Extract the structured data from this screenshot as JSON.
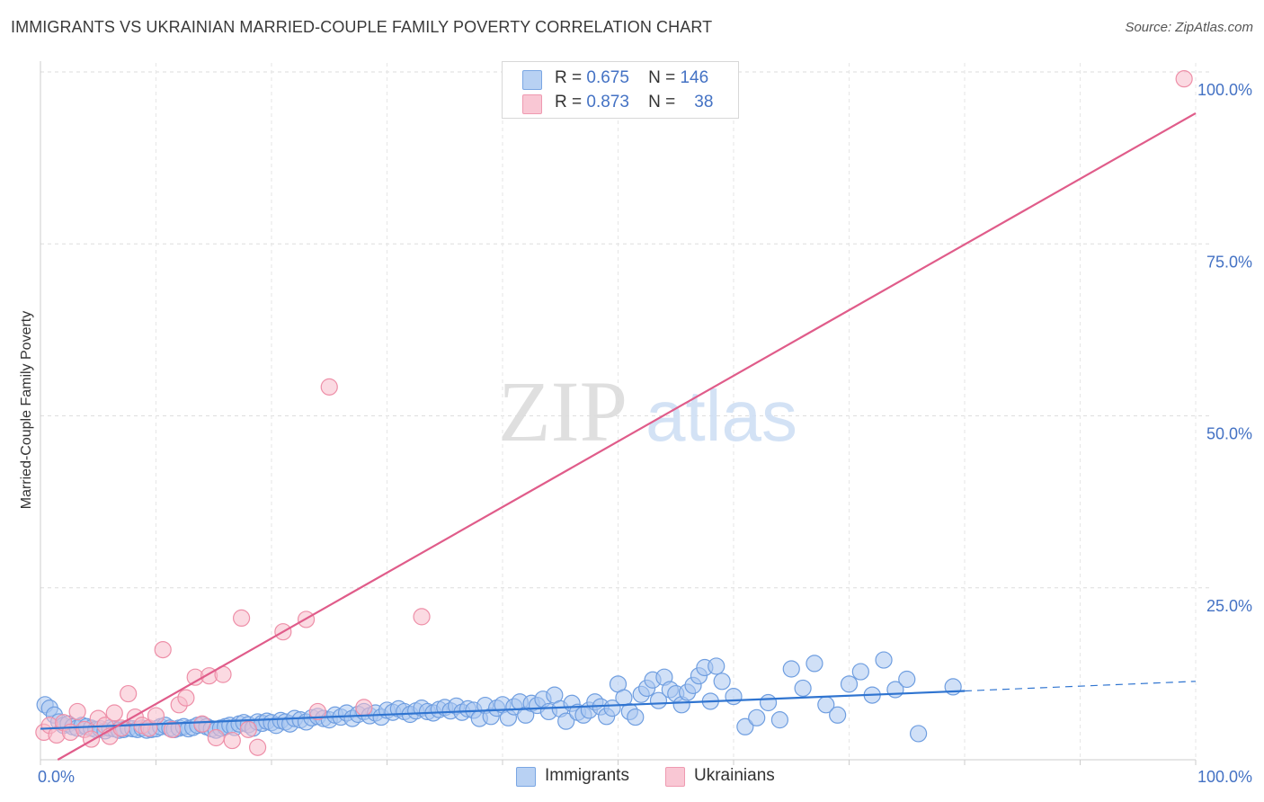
{
  "chart_data": {
    "type": "scatter",
    "title": "IMMIGRANTS VS UKRAINIAN MARRIED-COUPLE FAMILY POVERTY CORRELATION CHART",
    "source": "Source: ZipAtlas.com",
    "xlabel": "",
    "ylabel": "Married-Couple Family Poverty",
    "xlim": [
      0,
      100
    ],
    "ylim": [
      0,
      100
    ],
    "x_tick_labels": [
      "0.0%",
      "100.0%"
    ],
    "y_ticks": [
      {
        "value": 25,
        "label": "25.0%"
      },
      {
        "value": 50,
        "label": "50.0%"
      },
      {
        "value": 75,
        "label": "75.0%"
      },
      {
        "value": 100,
        "label": "100.0%"
      }
    ],
    "watermark": {
      "part1": "ZIP",
      "part2": "atlas"
    },
    "legend": {
      "rows": [
        {
          "r_label": "R =",
          "r_value": "0.675",
          "n_label": "N =",
          "n_value": "146"
        },
        {
          "r_label": "R =",
          "r_value": "0.873",
          "n_label": "N =",
          "n_value": "38"
        }
      ]
    },
    "series": [
      {
        "name": "Immigrants",
        "fill": "#a9c6f0",
        "stroke": "#6f9ee0",
        "line_color": "#2f74d0",
        "trend": {
          "x0": 0,
          "y0": 4.5,
          "x1": 80,
          "y1": 10.0,
          "dash_to_x": 100,
          "dash_to_y": 11.4
        },
        "points": [
          [
            0.4,
            8.0
          ],
          [
            0.8,
            7.5
          ],
          [
            1.2,
            6.5
          ],
          [
            1.6,
            5.5
          ],
          [
            2.0,
            5.0
          ],
          [
            2.4,
            5.2
          ],
          [
            2.8,
            4.8
          ],
          [
            3.2,
            4.6
          ],
          [
            3.6,
            5.0
          ],
          [
            4.0,
            4.8
          ],
          [
            4.4,
            4.6
          ],
          [
            4.8,
            4.4
          ],
          [
            5.2,
            4.5
          ],
          [
            5.6,
            4.2
          ],
          [
            6.0,
            4.6
          ],
          [
            6.4,
            4.5
          ],
          [
            6.8,
            4.3
          ],
          [
            7.2,
            4.4
          ],
          [
            7.6,
            4.6
          ],
          [
            8.0,
            4.5
          ],
          [
            8.4,
            4.4
          ],
          [
            8.8,
            4.6
          ],
          [
            9.2,
            4.3
          ],
          [
            9.6,
            4.4
          ],
          [
            10.0,
            4.5
          ],
          [
            10.4,
            4.8
          ],
          [
            10.8,
            5.0
          ],
          [
            11.2,
            4.6
          ],
          [
            11.6,
            4.4
          ],
          [
            12.0,
            4.6
          ],
          [
            12.4,
            4.8
          ],
          [
            12.8,
            4.5
          ],
          [
            13.2,
            4.7
          ],
          [
            13.6,
            5.0
          ],
          [
            14.0,
            5.1
          ],
          [
            14.4,
            4.8
          ],
          [
            14.8,
            4.5
          ],
          [
            15.2,
            4.3
          ],
          [
            15.6,
            4.6
          ],
          [
            16.0,
            4.8
          ],
          [
            16.4,
            5.0
          ],
          [
            16.8,
            4.7
          ],
          [
            17.2,
            5.2
          ],
          [
            17.6,
            5.4
          ],
          [
            18.0,
            5.1
          ],
          [
            18.4,
            4.6
          ],
          [
            18.8,
            5.5
          ],
          [
            19.2,
            5.3
          ],
          [
            19.6,
            5.6
          ],
          [
            20.0,
            5.4
          ],
          [
            20.4,
            5.0
          ],
          [
            20.8,
            5.7
          ],
          [
            21.2,
            5.5
          ],
          [
            21.6,
            5.2
          ],
          [
            22.0,
            6.0
          ],
          [
            22.5,
            5.8
          ],
          [
            23.0,
            5.5
          ],
          [
            23.5,
            6.1
          ],
          [
            24.0,
            6.3
          ],
          [
            24.5,
            6.0
          ],
          [
            25.0,
            5.8
          ],
          [
            25.5,
            6.5
          ],
          [
            26.0,
            6.2
          ],
          [
            26.5,
            6.8
          ],
          [
            27.0,
            6.0
          ],
          [
            27.5,
            6.6
          ],
          [
            28.0,
            7.0
          ],
          [
            28.5,
            6.4
          ],
          [
            29.0,
            6.8
          ],
          [
            29.5,
            6.2
          ],
          [
            30.0,
            7.2
          ],
          [
            30.5,
            6.9
          ],
          [
            31.0,
            7.4
          ],
          [
            31.5,
            7.0
          ],
          [
            32.0,
            6.6
          ],
          [
            32.5,
            7.1
          ],
          [
            33.0,
            7.5
          ],
          [
            33.5,
            7.0
          ],
          [
            34.0,
            6.8
          ],
          [
            34.5,
            7.3
          ],
          [
            35.0,
            7.6
          ],
          [
            35.5,
            7.1
          ],
          [
            36.0,
            7.8
          ],
          [
            36.5,
            6.9
          ],
          [
            37.0,
            7.4
          ],
          [
            37.5,
            7.2
          ],
          [
            38.0,
            6.0
          ],
          [
            38.5,
            7.9
          ],
          [
            39.0,
            6.3
          ],
          [
            39.5,
            7.5
          ],
          [
            40.0,
            8.0
          ],
          [
            40.5,
            6.1
          ],
          [
            41.0,
            7.7
          ],
          [
            41.5,
            8.4
          ],
          [
            42.0,
            6.5
          ],
          [
            42.5,
            8.2
          ],
          [
            43.0,
            7.9
          ],
          [
            43.5,
            8.8
          ],
          [
            44.0,
            7.0
          ],
          [
            44.5,
            9.4
          ],
          [
            45.0,
            7.4
          ],
          [
            45.5,
            5.6
          ],
          [
            46.0,
            8.2
          ],
          [
            46.5,
            6.9
          ],
          [
            47.0,
            6.5
          ],
          [
            47.5,
            7.2
          ],
          [
            48.0,
            8.4
          ],
          [
            48.5,
            7.7
          ],
          [
            49.0,
            6.3
          ],
          [
            49.5,
            7.5
          ],
          [
            50.0,
            11.0
          ],
          [
            50.5,
            9.0
          ],
          [
            51.0,
            7.0
          ],
          [
            51.5,
            6.2
          ],
          [
            52.0,
            9.5
          ],
          [
            52.5,
            10.4
          ],
          [
            53.0,
            11.6
          ],
          [
            53.5,
            8.6
          ],
          [
            54.0,
            12.0
          ],
          [
            54.5,
            10.2
          ],
          [
            55.0,
            9.6
          ],
          [
            55.5,
            8.0
          ],
          [
            56.0,
            9.8
          ],
          [
            56.5,
            10.8
          ],
          [
            57.0,
            12.2
          ],
          [
            57.5,
            13.4
          ],
          [
            58.0,
            8.5
          ],
          [
            58.5,
            13.6
          ],
          [
            59.0,
            11.4
          ],
          [
            60.0,
            9.2
          ],
          [
            61.0,
            4.8
          ],
          [
            62.0,
            6.1
          ],
          [
            63.0,
            8.3
          ],
          [
            64.0,
            5.8
          ],
          [
            65.0,
            13.2
          ],
          [
            66.0,
            10.4
          ],
          [
            67.0,
            14.0
          ],
          [
            68.0,
            8.0
          ],
          [
            69.0,
            6.5
          ],
          [
            70.0,
            11.0
          ],
          [
            71.0,
            12.8
          ],
          [
            72.0,
            9.4
          ],
          [
            73.0,
            14.5
          ],
          [
            74.0,
            10.2
          ],
          [
            75.0,
            11.7
          ],
          [
            76.0,
            3.8
          ],
          [
            79.0,
            10.6
          ]
        ]
      },
      {
        "name": "Ukrainians",
        "fill": "#f7bccb",
        "stroke": "#ee8fa8",
        "line_color": "#e05c8a",
        "trend": {
          "x0": 1.5,
          "y0": 0,
          "x1": 100,
          "y1": 94.0
        },
        "points": [
          [
            0.3,
            4.0
          ],
          [
            0.8,
            5.0
          ],
          [
            1.4,
            3.6
          ],
          [
            2.0,
            5.4
          ],
          [
            2.6,
            4.0
          ],
          [
            3.2,
            7.0
          ],
          [
            3.8,
            4.4
          ],
          [
            4.4,
            3.0
          ],
          [
            5.0,
            6.0
          ],
          [
            5.6,
            5.0
          ],
          [
            6.0,
            3.4
          ],
          [
            6.4,
            6.8
          ],
          [
            7.0,
            4.6
          ],
          [
            7.6,
            9.6
          ],
          [
            8.2,
            6.2
          ],
          [
            8.8,
            5.0
          ],
          [
            9.4,
            4.6
          ],
          [
            10.0,
            6.4
          ],
          [
            10.6,
            16.0
          ],
          [
            11.4,
            4.4
          ],
          [
            12.0,
            8.0
          ],
          [
            12.6,
            9.0
          ],
          [
            13.4,
            12.0
          ],
          [
            14.0,
            5.2
          ],
          [
            14.6,
            12.2
          ],
          [
            15.2,
            3.2
          ],
          [
            15.8,
            12.4
          ],
          [
            16.6,
            2.8
          ],
          [
            17.4,
            20.6
          ],
          [
            18.0,
            4.4
          ],
          [
            18.8,
            1.8
          ],
          [
            21.0,
            18.6
          ],
          [
            23.0,
            20.4
          ],
          [
            24.0,
            7.0
          ],
          [
            25.0,
            54.2
          ],
          [
            28.0,
            7.6
          ],
          [
            33.0,
            20.8
          ],
          [
            99.0,
            99.0
          ]
        ]
      }
    ]
  }
}
